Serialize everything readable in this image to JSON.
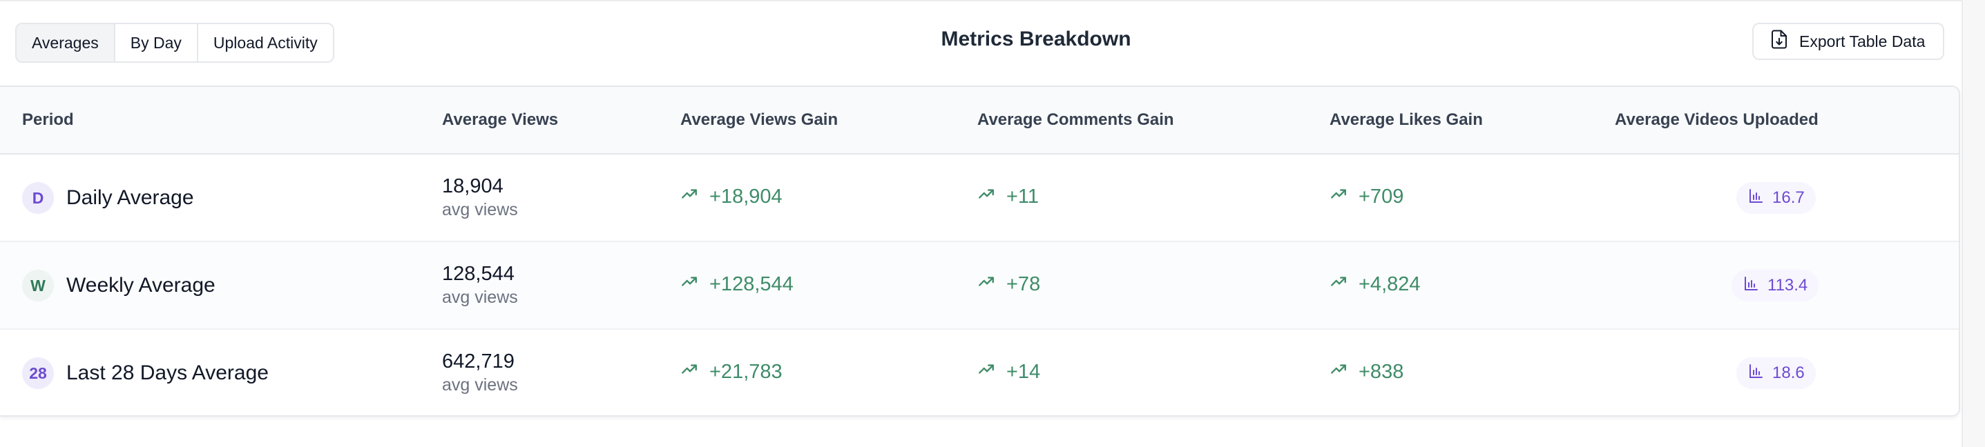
{
  "toolbar": {
    "tabs": [
      {
        "label": "Averages",
        "active": true
      },
      {
        "label": "By Day",
        "active": false
      },
      {
        "label": "Upload Activity",
        "active": false
      }
    ],
    "title": "Metrics Breakdown",
    "export_label": "Export Table Data",
    "export_icon": "file-download-icon"
  },
  "table": {
    "headers": {
      "period": "Period",
      "avg_views": "Average Views",
      "views_gain": "Average Views Gain",
      "comments_gain": "Average Comments Gain",
      "likes_gain": "Average Likes Gain",
      "videos_uploaded": "Average Videos Uploaded"
    },
    "rows": [
      {
        "badge": "D",
        "badge_color": "#6d4bd1",
        "period": "Daily Average",
        "views": "18,904",
        "views_sub": "avg views",
        "views_gain": "+18,904",
        "comments_gain": "+11",
        "likes_gain": "+709",
        "videos_uploaded": "16.7"
      },
      {
        "badge": "W",
        "badge_color": "#2f7a5b",
        "period": "Weekly Average",
        "views": "128,544",
        "views_sub": "avg views",
        "views_gain": "+128,544",
        "comments_gain": "+78",
        "likes_gain": "+4,824",
        "videos_uploaded": "113.4"
      },
      {
        "badge": "28",
        "badge_color": "#6d4bd1",
        "period": "Last 28 Days Average",
        "views": "642,719",
        "views_sub": "avg views",
        "views_gain": "+21,783",
        "comments_gain": "+14",
        "likes_gain": "+838",
        "videos_uploaded": "18.6"
      }
    ]
  },
  "colors": {
    "gain_green": "#3f8c68",
    "accent_purple": "#6d4bd1"
  },
  "icons": {
    "gain": "trending-up-icon",
    "uploads": "bar-chart-icon"
  }
}
